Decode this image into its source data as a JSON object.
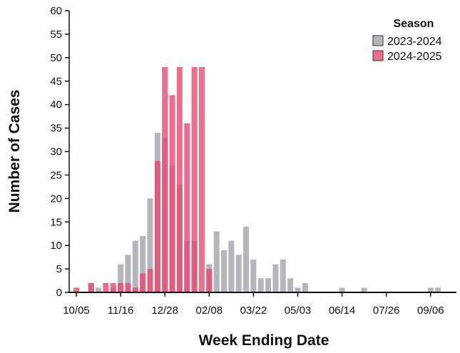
{
  "chart_data": {
    "type": "bar",
    "x_label": "Week Ending Date",
    "y_label": "Number of Cases",
    "legend_title": "Season",
    "legend_position": "upper right",
    "categories": [
      "10/05",
      null,
      null,
      null,
      null,
      null,
      "11/16",
      null,
      null,
      null,
      null,
      null,
      "12/28",
      null,
      null,
      null,
      null,
      null,
      "02/08",
      null,
      null,
      null,
      null,
      null,
      "03/22",
      null,
      null,
      null,
      null,
      null,
      "05/03",
      null,
      null,
      null,
      null,
      null,
      "06/14",
      null,
      null,
      null,
      null,
      null,
      "07/26",
      null,
      null,
      null,
      null,
      null,
      "09/06",
      null
    ],
    "series": [
      {
        "name": "2023-2024",
        "color": "#a3a3ab",
        "values": [
          0,
          0,
          2,
          1,
          0,
          1,
          6,
          8,
          11,
          12,
          20,
          34,
          33,
          27,
          23,
          11,
          11,
          0,
          6,
          13,
          9,
          11,
          8,
          14,
          7,
          3,
          3,
          6,
          7,
          3,
          1,
          2,
          0,
          0,
          0,
          0,
          1,
          0,
          0,
          1,
          0,
          0,
          0,
          0,
          0,
          0,
          0,
          0,
          1,
          1
        ]
      },
      {
        "name": "2024-2025",
        "color": "#e8486f",
        "values": [
          1,
          0,
          2,
          0,
          2,
          2,
          2,
          2,
          1,
          4,
          5,
          28,
          48,
          42,
          48,
          36,
          48,
          48,
          5,
          0,
          0,
          0,
          0,
          0,
          0,
          0,
          0,
          0,
          0,
          0,
          0,
          0,
          0,
          0,
          0,
          0,
          0,
          0,
          0,
          0,
          0,
          0,
          0,
          0,
          0,
          0,
          0,
          0,
          0,
          0
        ]
      }
    ],
    "ylim": [
      0,
      60
    ],
    "yticks": [
      0,
      5,
      10,
      15,
      20,
      25,
      30,
      35,
      40,
      45,
      50,
      55,
      60
    ]
  }
}
